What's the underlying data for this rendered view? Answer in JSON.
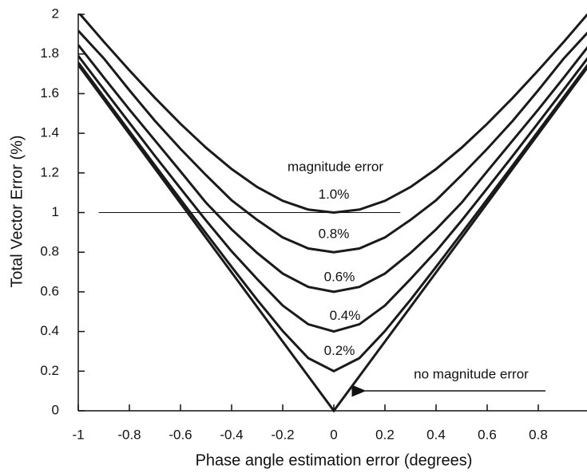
{
  "chart_data": {
    "type": "line",
    "x_label": "Phase angle estimation error (degrees)",
    "y_label": "Total Vector Error (%)",
    "annotations": [
      "magnitude error"
    ],
    "x": [
      -1,
      -0.9,
      -0.8,
      -0.7,
      -0.6,
      -0.5,
      -0.4,
      -0.3,
      -0.2,
      -0.1,
      0,
      0.1,
      0.2,
      0.3,
      0.4,
      0.5,
      0.6,
      0.7,
      0.8,
      0.9,
      1
    ],
    "series": [
      {
        "name": "1.0%",
        "color": "#1a1a1a",
        "values": [
          2.0115,
          1.8619,
          1.7178,
          1.5788,
          1.4479,
          1.3272,
          1.2198,
          1.1289,
          1.0592,
          1.0151,
          1,
          1.0151,
          1.0592,
          1.1289,
          1.2198,
          1.3272,
          1.4479,
          1.5788,
          1.7178,
          1.8619,
          2.0115
        ]
      },
      {
        "name": "0.8%",
        "color": "#1a1a1a",
        "values": [
          1.9176,
          1.7778,
          1.6172,
          1.4629,
          1.3214,
          1.1887,
          1.0619,
          0.9632,
          0.8745,
          0.8188,
          0.8,
          0.8188,
          0.8745,
          0.9632,
          1.0619,
          1.1887,
          1.3214,
          1.4629,
          1.6172,
          1.7778,
          1.9176
        ]
      },
      {
        "name": "0.6%",
        "color": "#1a1a1a",
        "values": [
          1.8456,
          1.6815,
          1.5198,
          1.3638,
          1.2078,
          1.0497,
          0.9152,
          0.7965,
          0.6923,
          0.6248,
          0.6,
          0.6248,
          0.6923,
          0.7965,
          0.9152,
          1.0497,
          1.2078,
          1.3638,
          1.5198,
          1.6815,
          1.8456
        ]
      },
      {
        "name": "0.4%",
        "color": "#1a1a1a",
        "values": [
          1.7907,
          1.6209,
          1.4529,
          1.2858,
          1.1219,
          0.9598,
          0.8047,
          0.6645,
          0.531,
          0.4364,
          0.4,
          0.4364,
          0.531,
          0.6645,
          0.8047,
          0.9598,
          1.1219,
          1.2858,
          1.4529,
          1.6209,
          1.7907
        ]
      },
      {
        "name": "0.2%",
        "color": "#1a1a1a",
        "values": [
          1.7568,
          1.5835,
          1.4105,
          1.238,
          1.0661,
          0.8953,
          0.7262,
          0.5598,
          0.4022,
          0.2656,
          0.2,
          0.2656,
          0.4022,
          0.5598,
          0.7262,
          0.8953,
          1.0661,
          1.238,
          1.4105,
          1.5835,
          1.7568
        ]
      },
      {
        "name": "no magnitude error",
        "color": "#1a1a1a",
        "values": [
          1.7453,
          1.5708,
          1.3963,
          1.2217,
          1.0472,
          0.8727,
          0.6981,
          0.5236,
          0.3491,
          0.1745,
          0,
          0.1745,
          0.3491,
          0.5236,
          0.6981,
          0.8727,
          1.0472,
          1.2217,
          1.3963,
          1.5708,
          1.7453
        ]
      }
    ],
    "reference_line": {
      "y": 1,
      "x": [
        -0.92,
        0.26
      ]
    },
    "xlim": [
      -1,
      1
    ],
    "xticks": [
      -1,
      -0.8,
      -0.6,
      -0.4,
      -0.2,
      0,
      0.2,
      0.4,
      0.6,
      0.8
    ],
    "ylim": [
      0,
      2
    ],
    "yticks": [
      0,
      0.2,
      0.4,
      0.6,
      0.8,
      1,
      1.2,
      1.4,
      1.6,
      1.8,
      2
    ]
  }
}
